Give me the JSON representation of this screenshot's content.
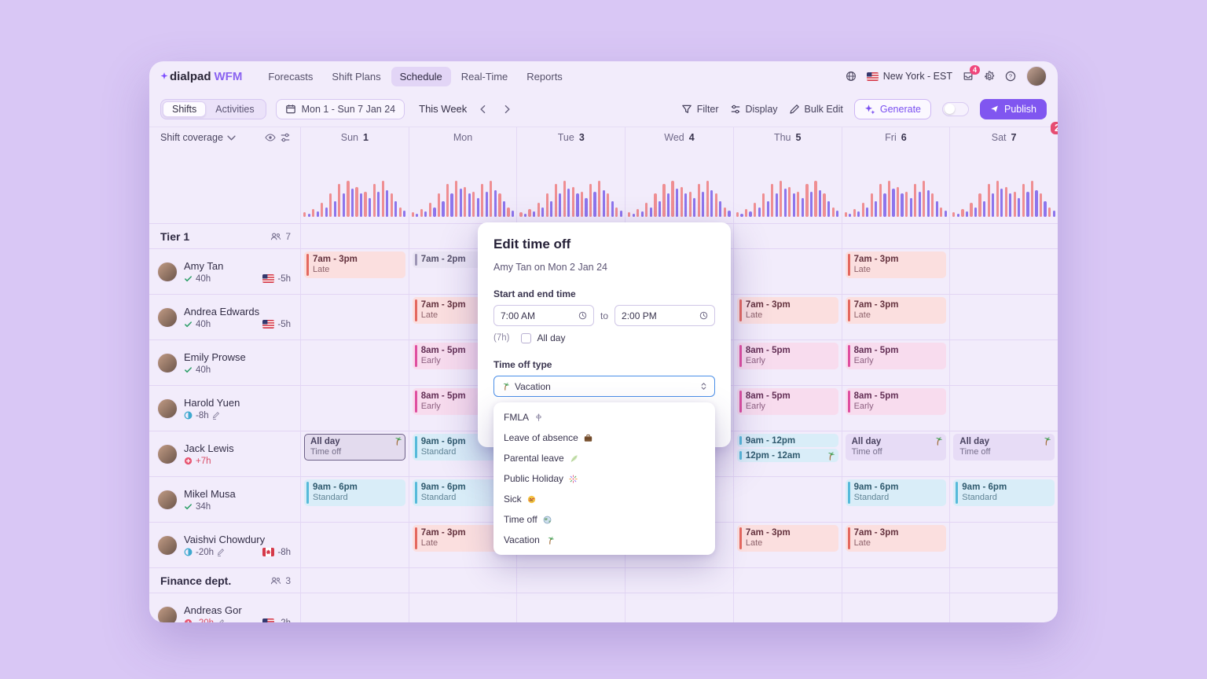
{
  "colors": {
    "accent_purple": "#8056f0",
    "inbox_badge_pink": "#f0477c",
    "today_badge_red": "#e64c71",
    "coverage_required_pink": "#ef8e92",
    "coverage_scheduled_purple": "#8d75ec"
  },
  "topbar": {
    "logo": {
      "brand": "dialpad",
      "product": "WFM"
    },
    "nav": [
      {
        "label": "Forecasts"
      },
      {
        "label": "Shift Plans"
      },
      {
        "label": "Schedule",
        "active": true
      },
      {
        "label": "Real-Time"
      },
      {
        "label": "Reports"
      }
    ],
    "timezone": "New York - EST",
    "inbox_badge": "4"
  },
  "toolbar": {
    "view_segments": [
      {
        "label": "Shifts",
        "active": true
      },
      {
        "label": "Activities"
      }
    ],
    "date_range": "Mon 1 - Sun 7 Jan 24",
    "week_label": "This Week",
    "filter_label": "Filter",
    "display_label": "Display",
    "bulk_edit_label": "Bulk Edit",
    "generate_label": "Generate",
    "publish_label": "Publish"
  },
  "grid": {
    "coverage_label": "Shift coverage",
    "days": [
      {
        "label": "Sun",
        "num": "1"
      },
      {
        "label": "Mon",
        "num": "2",
        "badge": true
      },
      {
        "label": "Tue",
        "num": "3"
      },
      {
        "label": "Wed",
        "num": "4"
      },
      {
        "label": "Thu",
        "num": "5"
      },
      {
        "label": "Fri",
        "num": "6"
      },
      {
        "label": "Sat",
        "num": "7"
      }
    ],
    "histogram": {
      "pairs": [
        [
          6,
          4
        ],
        [
          10,
          7
        ],
        [
          18,
          12
        ],
        [
          30,
          20
        ],
        [
          42,
          30
        ],
        [
          46,
          36
        ],
        [
          38,
          30
        ],
        [
          32,
          24
        ],
        [
          42,
          32
        ],
        [
          46,
          34
        ],
        [
          30,
          20
        ],
        [
          12,
          8
        ]
      ]
    },
    "groups": [
      {
        "name": "Tier 1",
        "count": "7",
        "people": [
          {
            "name": "Amy Tan",
            "stats_left": [
              {
                "icon": "check-icon",
                "text": "40h"
              }
            ],
            "stats_right": [
              {
                "icon": "us-flag-icon",
                "text": "-5h"
              }
            ],
            "shifts": [
              {
                "day": 0,
                "type": "late",
                "time": "7am - 3pm",
                "label": "Late"
              },
              {
                "day": 1,
                "type": "editing",
                "time": "7am - 2pm"
              },
              {
                "day": 5,
                "type": "late",
                "time": "7am - 3pm",
                "label": "Late"
              }
            ]
          },
          {
            "name": "Andrea Edwards",
            "stats_left": [
              {
                "icon": "check-icon",
                "text": "40h"
              }
            ],
            "stats_right": [
              {
                "icon": "us-flag-icon",
                "text": "-5h"
              }
            ],
            "shifts": [
              {
                "day": 1,
                "type": "late",
                "time": "7am - 3pm",
                "label": "Late"
              },
              {
                "day": 4,
                "type": "late",
                "time": "7am - 3pm",
                "label": "Late"
              },
              {
                "day": 5,
                "type": "late",
                "time": "7am - 3pm",
                "label": "Late"
              }
            ]
          },
          {
            "name": "Emily Prowse",
            "stats_left": [
              {
                "icon": "check-icon",
                "text": "40h"
              }
            ],
            "stats_right": [],
            "shifts": [
              {
                "day": 1,
                "type": "early",
                "time": "8am - 5pm",
                "label": "Early"
              },
              {
                "day": 4,
                "type": "early",
                "time": "8am - 5pm",
                "label": "Early"
              },
              {
                "day": 5,
                "type": "early",
                "time": "8am - 5pm",
                "label": "Early"
              }
            ]
          },
          {
            "name": "Harold Yuen",
            "stats_left": [
              {
                "icon": "undertime-icon",
                "text": "-8h"
              },
              {
                "icon": "pencil-icon"
              }
            ],
            "stats_right": [],
            "shifts": [
              {
                "day": 1,
                "type": "early",
                "time": "8am - 5pm",
                "label": "Early"
              },
              {
                "day": 4,
                "type": "early",
                "time": "8am - 5pm",
                "label": "Early"
              },
              {
                "day": 5,
                "type": "early",
                "time": "8am - 5pm",
                "label": "Early"
              }
            ]
          },
          {
            "name": "Jack Lewis",
            "stats_left": [
              {
                "icon": "overtime-icon",
                "text": "+7h",
                "tone": "red"
              }
            ],
            "stats_right": [],
            "shifts": [
              {
                "day": 0,
                "type": "timeoff",
                "time": "All day",
                "label": "Time off",
                "palm": true,
                "selected": true
              },
              {
                "day": 1,
                "type": "standard",
                "time": "9am - 6pm",
                "label": "Standard"
              },
              {
                "day": 4,
                "type": "standard",
                "time": "9am - 12pm",
                "compact": true
              },
              {
                "day": 4,
                "type": "standard",
                "time": "12pm - 12am",
                "compact": true,
                "palm": true
              },
              {
                "day": 5,
                "type": "timeoff",
                "time": "All day",
                "label": "Time off",
                "palm": true
              },
              {
                "day": 6,
                "type": "timeoff",
                "time": "All day",
                "label": "Time off",
                "palm": true
              }
            ]
          },
          {
            "name": "Mikel Musa",
            "stats_left": [
              {
                "icon": "check-icon",
                "text": "34h"
              }
            ],
            "stats_right": [],
            "shifts": [
              {
                "day": 0,
                "type": "standard",
                "time": "9am - 6pm",
                "label": "Standard"
              },
              {
                "day": 1,
                "type": "standard",
                "time": "9am - 6pm",
                "label": "Standard"
              },
              {
                "day": 5,
                "type": "standard",
                "time": "9am - 6pm",
                "label": "Standard"
              },
              {
                "day": 6,
                "type": "standard",
                "time": "9am - 6pm",
                "label": "Standard"
              }
            ]
          },
          {
            "name": "Vaishvi Chowdury",
            "stats_left": [
              {
                "icon": "undertime-icon",
                "text": "-20h"
              },
              {
                "icon": "pencil-icon"
              }
            ],
            "stats_right": [
              {
                "icon": "ca-flag-icon",
                "text": "-8h"
              }
            ],
            "shifts": [
              {
                "day": 1,
                "type": "late",
                "time": "7am - 3pm",
                "label": "Late"
              },
              {
                "day": 4,
                "type": "late",
                "time": "7am - 3pm",
                "label": "Late"
              },
              {
                "day": 5,
                "type": "late",
                "time": "7am - 3pm",
                "label": "Late"
              }
            ]
          }
        ]
      },
      {
        "name": "Finance dept.",
        "count": "3",
        "people": [
          {
            "name": "Andreas Gor",
            "stats_left": [
              {
                "icon": "overtime-icon",
                "text": "-20h",
                "tone": "red"
              },
              {
                "icon": "pencil-icon"
              }
            ],
            "stats_right": [
              {
                "icon": "us-flag-icon",
                "text": "-2h"
              }
            ],
            "shifts": []
          }
        ]
      }
    ]
  },
  "modal": {
    "title": "Edit time off",
    "subtitle": "Amy Tan on Mon 2 Jan 24",
    "start_end_label": "Start and end time",
    "start_time": "7:00 AM",
    "to_label": "to",
    "end_time": "2:00 PM",
    "duration_label": "(7h)",
    "all_day_label": "All day",
    "type_label": "Time off type",
    "type_value": "Vacation",
    "type_options": [
      {
        "label": "FMLA",
        "icon": "medical-icon"
      },
      {
        "label": "Leave of absence",
        "icon": "briefcase-icon"
      },
      {
        "label": "Parental leave",
        "icon": "feather-icon"
      },
      {
        "label": "Public Holiday",
        "icon": "fireworks-icon"
      },
      {
        "label": "Sick",
        "icon": "sick-icon"
      },
      {
        "label": "Time off",
        "icon": "earth-icon"
      },
      {
        "label": "Vacation",
        "icon": "palm-icon"
      }
    ]
  }
}
